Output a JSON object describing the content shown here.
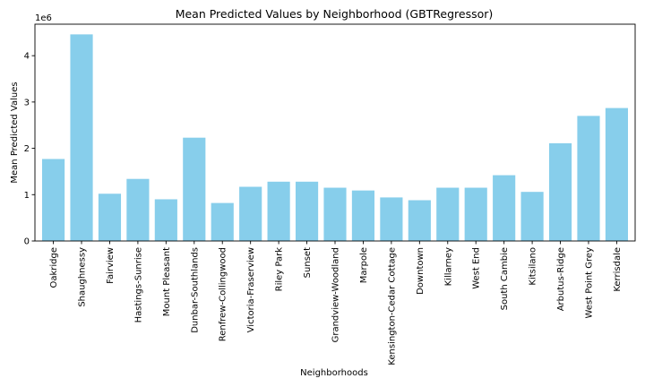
{
  "chart_data": {
    "type": "bar",
    "title": "Mean Predicted Values by Neighborhood (GBTRegressor)",
    "xlabel": "Neighborhoods",
    "ylabel": "Mean Predicted Values",
    "y_offset_label": "1e6",
    "categories": [
      "Oakridge",
      "Shaughnessy",
      "Fairview",
      "Hastings-Sunrise",
      "Mount Pleasant",
      "Dunbar-Southlands",
      "Renfrew-Collingwood",
      "Victoria-Fraserview",
      "Riley Park",
      "Sunset",
      "Grandview-Woodland",
      "Marpole",
      "Kensington-Cedar Cottage",
      "Downtown",
      "Killarney",
      "West End",
      "South Cambie",
      "Kitsilano",
      "Arbutus-Ridge",
      "West Point Grey",
      "Kerrisdale"
    ],
    "values": [
      1770000,
      4460000,
      1020000,
      1340000,
      900000,
      2230000,
      820000,
      1170000,
      1280000,
      1280000,
      1150000,
      1090000,
      940000,
      880000,
      1150000,
      1150000,
      1420000,
      1060000,
      2110000,
      2700000,
      2870000
    ],
    "ylim": [
      0,
      4680000
    ],
    "yticks": [
      0,
      1000000,
      2000000,
      3000000,
      4000000
    ],
    "ytick_labels": [
      "0",
      "1",
      "2",
      "3",
      "4"
    ],
    "bar_color": "#87ceeb",
    "grid": false,
    "legend": "none"
  }
}
